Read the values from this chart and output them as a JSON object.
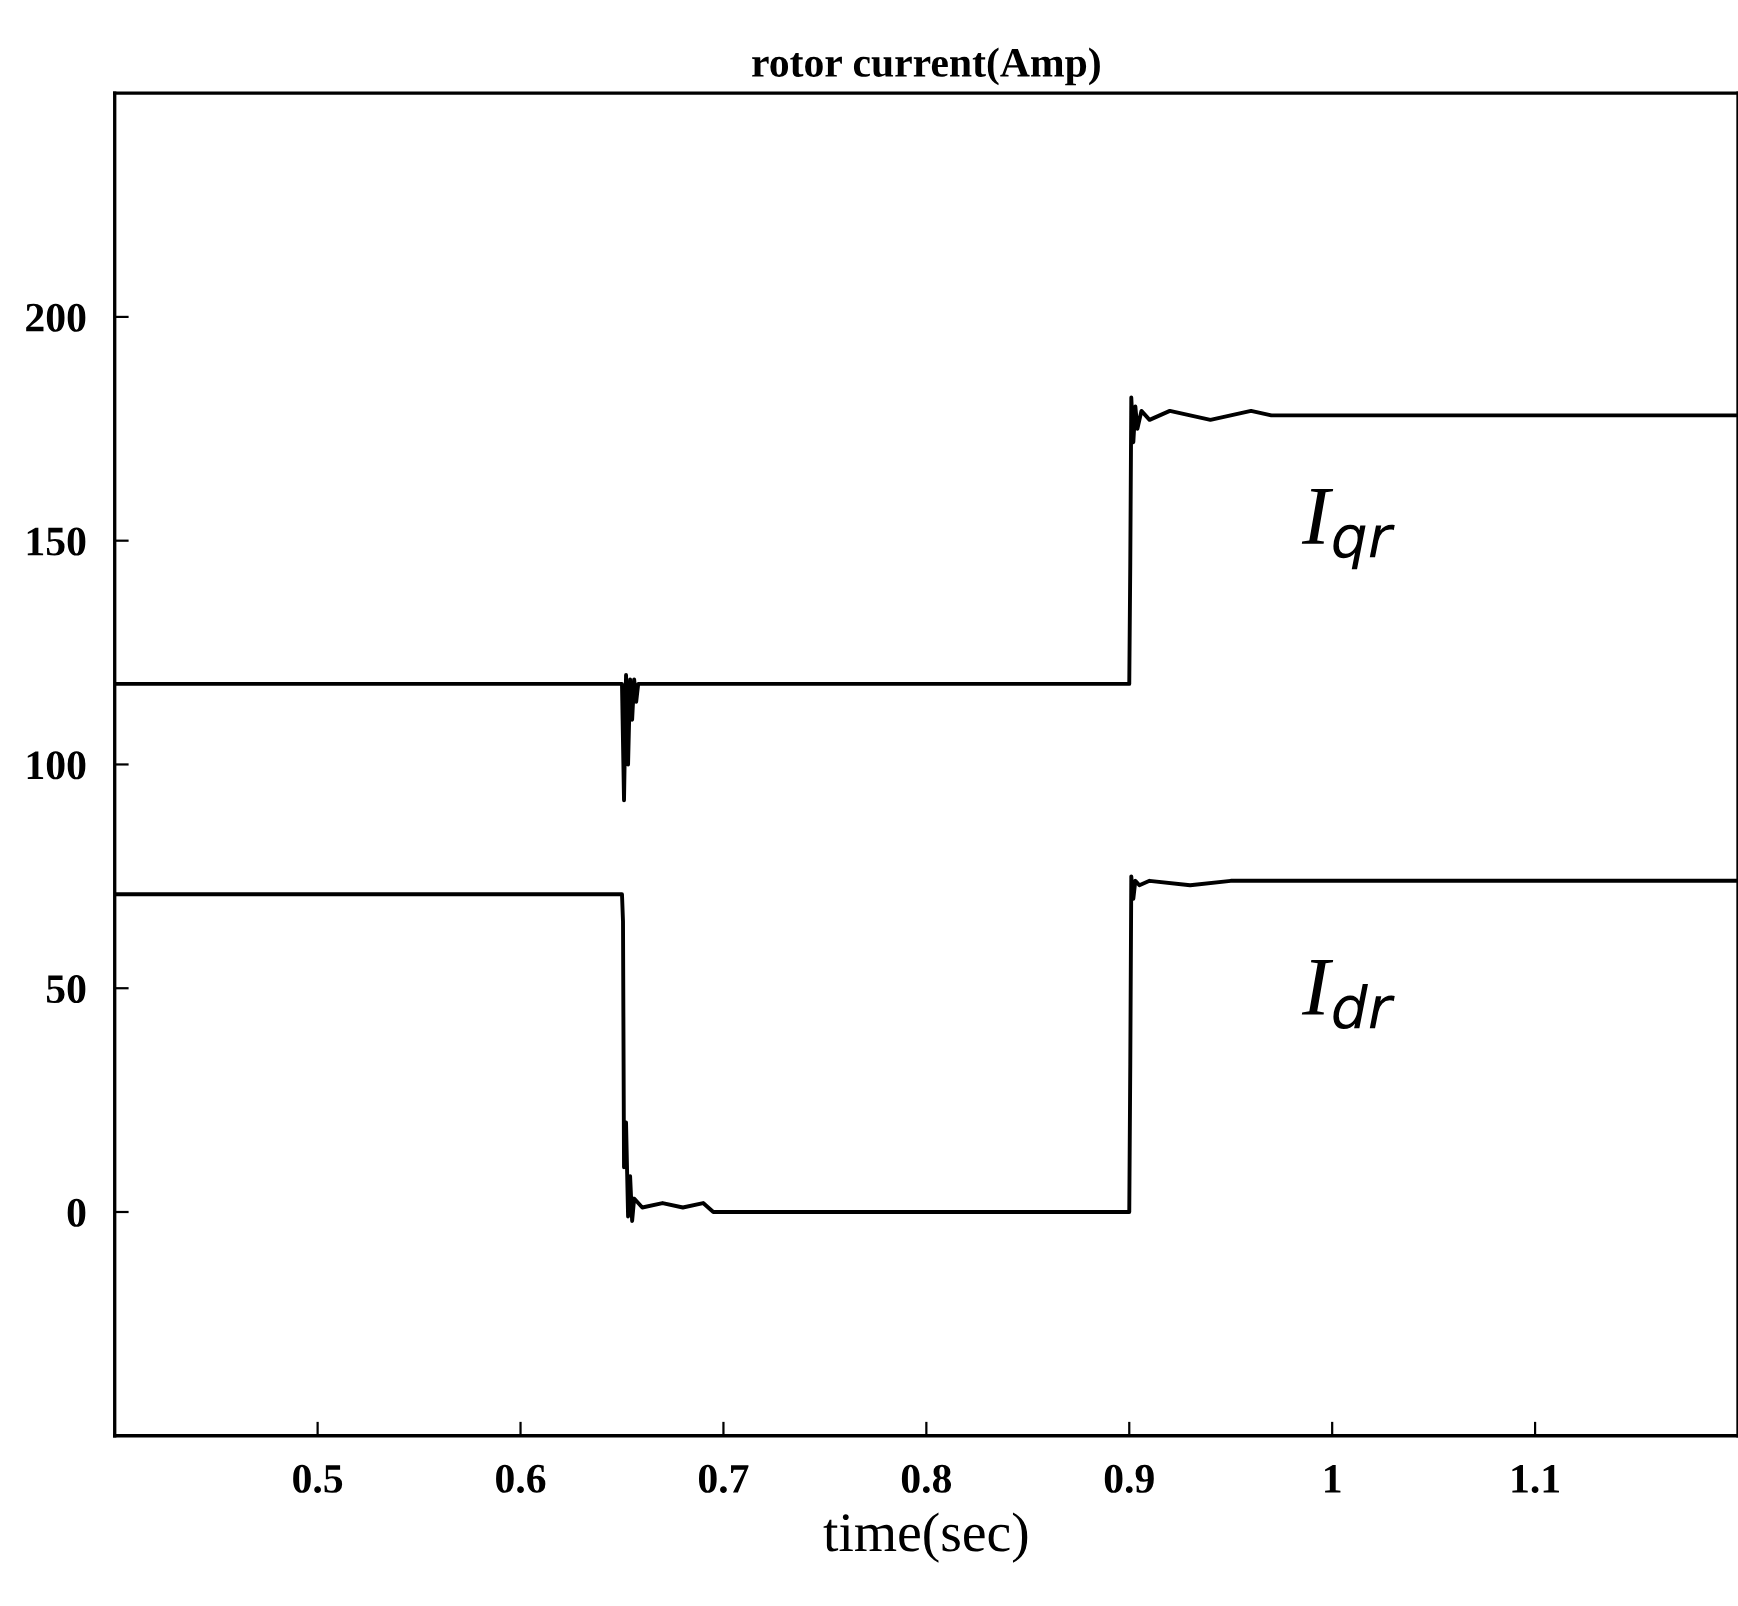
{
  "chart_data": {
    "type": "line",
    "title": "rotor current(Amp)",
    "xlabel": "time(sec)",
    "xlim": [
      0.4,
      1.2
    ],
    "ylim": [
      -50,
      250
    ],
    "xticks": [
      0.5,
      0.6,
      0.7,
      0.8,
      0.9,
      {
        "value": 1.0,
        "label": "1"
      },
      1.1
    ],
    "yticks": [
      0,
      50,
      100,
      150,
      200
    ],
    "grid": false,
    "legend": false,
    "marker": "none",
    "line_style": "solid",
    "series": [
      {
        "name": "I$_{qr}$",
        "color": "#000000",
        "x": [
          0.4,
          0.65,
          0.651,
          0.652,
          0.653,
          0.654,
          0.655,
          0.656,
          0.657,
          0.658,
          0.66,
          0.9,
          0.9005,
          0.901,
          0.902,
          0.903,
          0.904,
          0.906,
          0.91,
          0.92,
          0.94,
          0.96,
          0.97,
          1.2
        ],
        "values": [
          118,
          118,
          92,
          120,
          100,
          119,
          110,
          119,
          114,
          118,
          118,
          118,
          145,
          182,
          172,
          180,
          175,
          179,
          177,
          179,
          177,
          179,
          178,
          178
        ]
      },
      {
        "name": "I$_{dr}$",
        "color": "#000000",
        "x": [
          0.4,
          0.65,
          0.6505,
          0.651,
          0.652,
          0.653,
          0.654,
          0.655,
          0.656,
          0.66,
          0.67,
          0.68,
          0.69,
          0.695,
          0.7,
          0.9,
          0.9005,
          0.901,
          0.902,
          0.903,
          0.905,
          0.91,
          0.93,
          0.95,
          0.97,
          1.2
        ],
        "values": [
          71,
          71,
          65,
          10,
          20,
          -1,
          8,
          -2,
          3,
          1,
          2,
          1,
          2,
          0,
          0,
          0,
          33,
          75,
          70,
          74,
          73,
          74,
          73,
          74,
          74,
          74
        ]
      }
    ]
  }
}
